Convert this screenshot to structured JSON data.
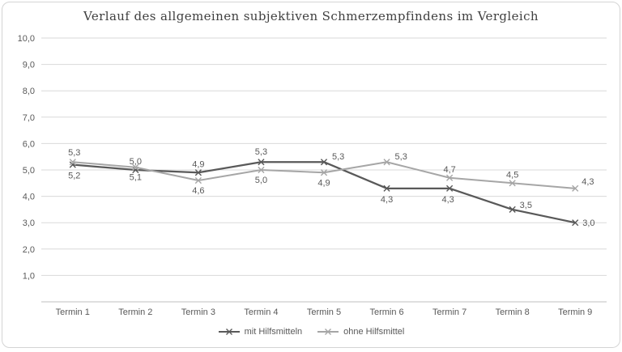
{
  "chart_data": {
    "type": "line",
    "title": "Verlauf des allgemeinen subjektiven Schmerzempfindens im Vergleich",
    "categories": [
      "Termin 1",
      "Termin 2",
      "Termin 3",
      "Termin 4",
      "Termin 5",
      "Termin 6",
      "Termin 7",
      "Termin 8",
      "Termin 9"
    ],
    "series": [
      {
        "name": "mit Hilfsmitteln",
        "color": "#595959",
        "values": [
          5.2,
          5.0,
          4.9,
          5.3,
          5.3,
          4.3,
          4.3,
          3.5,
          3.0
        ]
      },
      {
        "name": "ohne Hilfsmittel",
        "color": "#a6a6a6",
        "values": [
          5.3,
          5.1,
          4.6,
          5.0,
          4.9,
          5.3,
          4.7,
          4.5,
          4.3
        ]
      }
    ],
    "ylim": [
      0,
      10
    ],
    "y_ticks": [
      1,
      2,
      3,
      4,
      5,
      6,
      7,
      8,
      9,
      10
    ],
    "decimal_separator": ",",
    "grid": true,
    "legend_position": "bottom",
    "marker": "x",
    "colors": {
      "title": "#404040",
      "axis_text": "#595959",
      "gridline": "#d9d9d9",
      "axis_line": "#bfbfbf",
      "frame_border": "#d4d4d4"
    }
  }
}
